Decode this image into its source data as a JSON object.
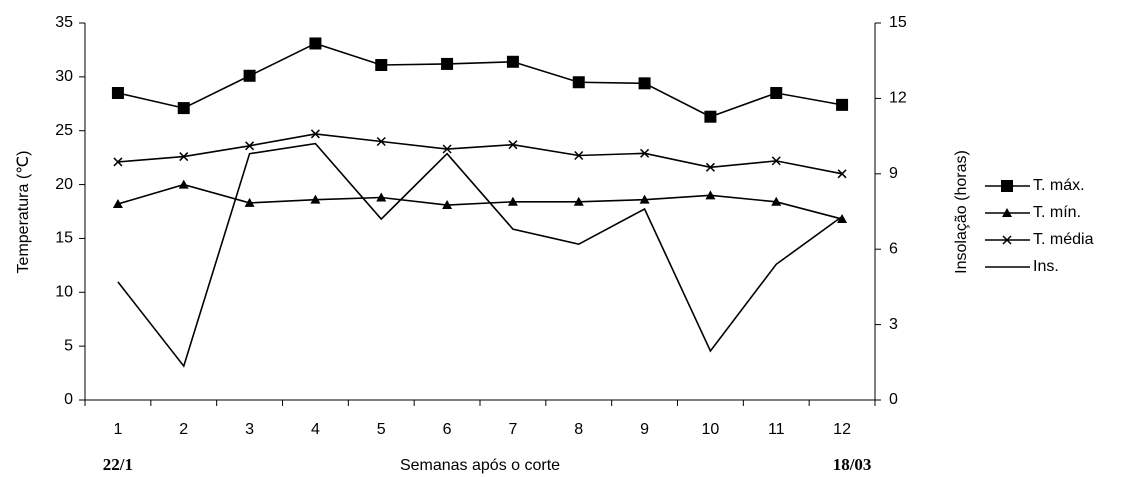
{
  "chart_data": {
    "type": "line",
    "x_label": "Semanas após o corte",
    "y_label": "Temperatura (℃)",
    "y2_label": "Insolação (horas)",
    "annotations": [
      "22/1",
      "18/03"
    ],
    "categories": [
      "1",
      "2",
      "3",
      "4",
      "5",
      "6",
      "7",
      "8",
      "9",
      "10",
      "11",
      "12"
    ],
    "ylim": [
      0,
      35
    ],
    "yticks": [
      0,
      5,
      10,
      15,
      20,
      25,
      30,
      35
    ],
    "y2lim": [
      0,
      15
    ],
    "y2ticks": [
      0,
      3,
      6,
      9,
      12,
      15
    ],
    "legend": "right",
    "series": [
      {
        "name": "T. máx.",
        "color": "#000000",
        "marker": "square",
        "values": [
          28.5,
          27.1,
          30.1,
          33.1,
          31.1,
          31.2,
          31.4,
          29.5,
          29.4,
          26.3,
          28.5,
          27.4
        ]
      },
      {
        "name": "T. mín.",
        "color": "#000000",
        "marker": "triangle",
        "values": [
          18.2,
          20.0,
          18.3,
          18.6,
          18.8,
          18.1,
          18.4,
          18.4,
          18.6,
          19.0,
          18.4,
          16.8
        ]
      },
      {
        "name": "T. média",
        "color": "#000000",
        "marker": "x",
        "values": [
          22.1,
          22.6,
          23.6,
          24.7,
          24.0,
          23.3,
          23.7,
          22.7,
          22.9,
          21.6,
          22.2,
          21.0
        ]
      },
      {
        "name": "Ins.",
        "color": "#000000",
        "marker": "none",
        "axis": "y2",
        "values": [
          4.7,
          1.35,
          9.8,
          10.2,
          7.2,
          9.8,
          6.8,
          6.2,
          7.6,
          1.95,
          5.4,
          7.3
        ]
      }
    ]
  }
}
